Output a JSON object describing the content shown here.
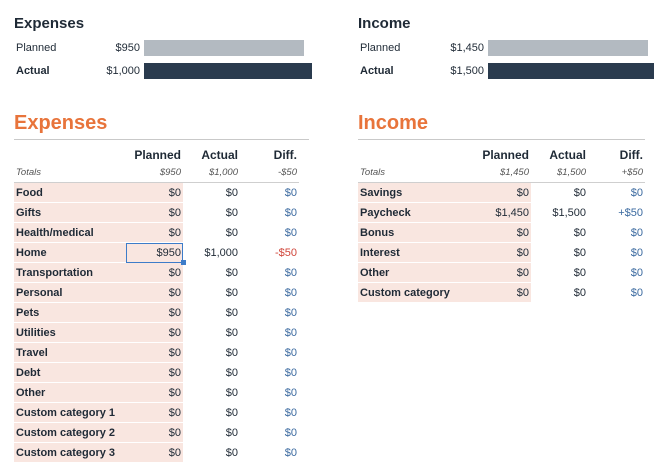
{
  "summary_expenses": {
    "title": "Expenses",
    "planned_label": "Planned",
    "planned_value": "$950",
    "actual_label": "Actual",
    "actual_value": "$1,000",
    "planned_amount": 950,
    "actual_amount": 1000
  },
  "summary_income": {
    "title": "Income",
    "planned_label": "Planned",
    "planned_value": "$1,450",
    "actual_label": "Actual",
    "actual_value": "$1,500",
    "planned_amount": 1450,
    "actual_amount": 1500
  },
  "expenses": {
    "title": "Expenses",
    "headers": {
      "planned": "Planned",
      "actual": "Actual",
      "diff": "Diff."
    },
    "totals": {
      "label": "Totals",
      "planned": "$950",
      "actual": "$1,000",
      "diff": "-$50"
    },
    "rows": [
      {
        "category": "Food",
        "planned": "$0",
        "actual": "$0",
        "diff": "$0"
      },
      {
        "category": "Gifts",
        "planned": "$0",
        "actual": "$0",
        "diff": "$0"
      },
      {
        "category": "Health/medical",
        "planned": "$0",
        "actual": "$0",
        "diff": "$0"
      },
      {
        "category": "Home",
        "planned": "$950",
        "actual": "$1,000",
        "diff": "-$50"
      },
      {
        "category": "Transportation",
        "planned": "$0",
        "actual": "$0",
        "diff": "$0"
      },
      {
        "category": "Personal",
        "planned": "$0",
        "actual": "$0",
        "diff": "$0"
      },
      {
        "category": "Pets",
        "planned": "$0",
        "actual": "$0",
        "diff": "$0"
      },
      {
        "category": "Utilities",
        "planned": "$0",
        "actual": "$0",
        "diff": "$0"
      },
      {
        "category": "Travel",
        "planned": "$0",
        "actual": "$0",
        "diff": "$0"
      },
      {
        "category": "Debt",
        "planned": "$0",
        "actual": "$0",
        "diff": "$0"
      },
      {
        "category": "Other",
        "planned": "$0",
        "actual": "$0",
        "diff": "$0"
      },
      {
        "category": "Custom category 1",
        "planned": "$0",
        "actual": "$0",
        "diff": "$0"
      },
      {
        "category": "Custom category 2",
        "planned": "$0",
        "actual": "$0",
        "diff": "$0"
      },
      {
        "category": "Custom category 3",
        "planned": "$0",
        "actual": "$0",
        "diff": "$0"
      }
    ]
  },
  "income": {
    "title": "Income",
    "headers": {
      "planned": "Planned",
      "actual": "Actual",
      "diff": "Diff."
    },
    "totals": {
      "label": "Totals",
      "planned": "$1,450",
      "actual": "$1,500",
      "diff": "+$50"
    },
    "rows": [
      {
        "category": "Savings",
        "planned": "$0",
        "actual": "$0",
        "diff": "$0"
      },
      {
        "category": "Paycheck",
        "planned": "$1,450",
        "actual": "$1,500",
        "diff": "+$50"
      },
      {
        "category": "Bonus",
        "planned": "$0",
        "actual": "$0",
        "diff": "$0"
      },
      {
        "category": "Interest",
        "planned": "$0",
        "actual": "$0",
        "diff": "$0"
      },
      {
        "category": "Other",
        "planned": "$0",
        "actual": "$0",
        "diff": "$0"
      },
      {
        "category": "Custom category",
        "planned": "$0",
        "actual": "$0",
        "diff": "$0"
      }
    ]
  },
  "colors": {
    "accent": "#e8743b",
    "planned_bar": "#b3bac1",
    "actual_bar": "#2a3b4e",
    "negative": "#d0453a",
    "neutral_diff": "#3b6aa0",
    "category_fill": "#f9e6e0"
  }
}
